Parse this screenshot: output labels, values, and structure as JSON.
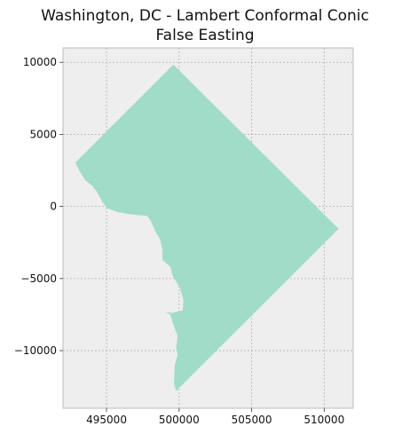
{
  "title_lines": [
    "Washington, DC - Lambert Conformal Conic",
    "False Easting"
  ],
  "colors": {
    "background": "#eeeeee",
    "grid": "#b2b2b2",
    "frame": "#bcbcbc",
    "fill": "#a1dcc9",
    "text": "#111111"
  },
  "chart_data": {
    "type": "map",
    "shape": "Washington, DC boundary polygon",
    "xlim": [
      492000,
      512000
    ],
    "ylim": [
      -14000,
      11000
    ],
    "x_ticks": [
      495000,
      500000,
      505000,
      510000
    ],
    "y_ticks": [
      -10000,
      -5000,
      0,
      5000,
      10000
    ],
    "x_tick_labels": [
      "495000",
      "500000",
      "505000",
      "510000"
    ],
    "y_tick_labels": [
      "−10000",
      "−5000",
      "0",
      "5000",
      "10000"
    ],
    "grid": true,
    "boundary": [
      [
        499600,
        9850
      ],
      [
        511000,
        -1550
      ],
      [
        499800,
        -12800
      ],
      [
        499650,
        -12300
      ],
      [
        499700,
        -11000
      ],
      [
        499900,
        -10300
      ],
      [
        499800,
        -9800
      ],
      [
        499900,
        -9000
      ],
      [
        499600,
        -8200
      ],
      [
        499400,
        -7500
      ],
      [
        499000,
        -7300
      ],
      [
        499500,
        -7400
      ],
      [
        500250,
        -7200
      ],
      [
        500300,
        -6500
      ],
      [
        500050,
        -5600
      ],
      [
        499600,
        -4900
      ],
      [
        499500,
        -4600
      ],
      [
        499400,
        -4200
      ],
      [
        498850,
        -3700
      ],
      [
        498850,
        -3000
      ],
      [
        498700,
        -2300
      ],
      [
        498300,
        -1600
      ],
      [
        498050,
        -1000
      ],
      [
        497800,
        -650
      ],
      [
        496700,
        -550
      ],
      [
        495800,
        -400
      ],
      [
        495000,
        -100
      ],
      [
        494700,
        350
      ],
      [
        494350,
        1000
      ],
      [
        494000,
        1450
      ],
      [
        493500,
        1850
      ],
      [
        493150,
        2450
      ],
      [
        492850,
        3050
      ],
      [
        499600,
        9850
      ]
    ]
  }
}
